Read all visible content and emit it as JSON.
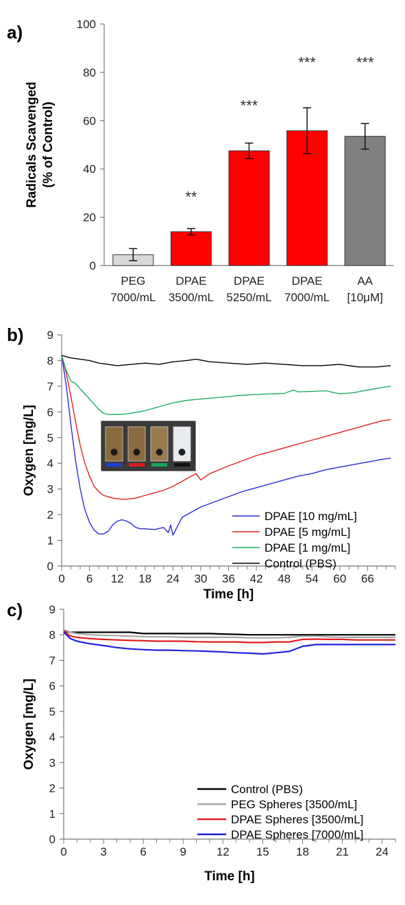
{
  "chart_data": [
    {
      "panel": "a)",
      "type": "bar",
      "ylabel": [
        "Radicals Scavenged",
        "(% of Control)"
      ],
      "ylim": [
        0,
        100
      ],
      "yticks": [
        0,
        20,
        40,
        60,
        80,
        100
      ],
      "categories": [
        [
          "PEG",
          "7000/mL"
        ],
        [
          "DPAE",
          "3500/mL"
        ],
        [
          "DPAE",
          "5250/mL"
        ],
        [
          "DPAE",
          "7000/mL"
        ],
        [
          "AA",
          "[10μM]"
        ]
      ],
      "values": [
        4.5,
        14,
        47.5,
        55.8,
        53.5
      ],
      "errors": [
        2.5,
        1.3,
        3.2,
        9.5,
        5.3
      ],
      "significance": [
        "",
        "**",
        "***",
        "***",
        "***"
      ],
      "colors": [
        "#d9d9d9",
        "#ff0000",
        "#ff0000",
        "#ff0000",
        "#808080"
      ]
    },
    {
      "panel": "b)",
      "type": "line",
      "xlabel": "Time [h]",
      "ylabel": "Oxygen [mg/L]",
      "xlim": [
        0,
        72
      ],
      "ylim": [
        0,
        9
      ],
      "xticks": [
        0,
        6,
        12,
        18,
        24,
        30,
        36,
        42,
        48,
        54,
        60,
        66
      ],
      "yticks": [
        0,
        1,
        2,
        3,
        4,
        5,
        6,
        7,
        8,
        9
      ],
      "legend_position": "bottom-right",
      "inset_image": {
        "swatches": [
          "#1f3fd6",
          "#e01b1b",
          "#1aa65a",
          "#111111"
        ]
      },
      "series": [
        {
          "name": "DPAE [10 mg/mL]",
          "color": "#2b2bd6",
          "x": [
            0,
            1,
            2,
            3,
            4,
            5,
            6,
            7,
            8,
            9,
            10,
            11,
            12,
            13,
            14,
            15,
            16,
            17,
            18,
            20,
            22,
            23,
            23.5,
            24,
            26,
            28,
            30,
            33,
            36,
            39,
            42,
            45,
            48,
            51,
            54,
            57,
            60,
            63,
            66,
            69,
            71
          ],
          "y": [
            8.2,
            7.0,
            5.5,
            4.1,
            3.0,
            2.2,
            1.7,
            1.4,
            1.25,
            1.25,
            1.35,
            1.6,
            1.75,
            1.8,
            1.75,
            1.65,
            1.5,
            1.45,
            1.45,
            1.42,
            1.5,
            1.3,
            1.6,
            1.2,
            1.9,
            2.1,
            2.3,
            2.5,
            2.7,
            2.9,
            3.05,
            3.2,
            3.35,
            3.5,
            3.6,
            3.75,
            3.85,
            3.95,
            4.05,
            4.15,
            4.2
          ]
        },
        {
          "name": "DPAE [5 mg/mL]",
          "color": "#e02020",
          "x": [
            0,
            1,
            2,
            3,
            4,
            5,
            6,
            7,
            8,
            9,
            10,
            11,
            12,
            13,
            14,
            15,
            16,
            18,
            20,
            22,
            24,
            26,
            28,
            29,
            30,
            32,
            34,
            36,
            39,
            42,
            45,
            48,
            51,
            54,
            57,
            60,
            63,
            66,
            69,
            71
          ],
          "y": [
            8.2,
            7.5,
            6.6,
            5.6,
            4.7,
            4.0,
            3.5,
            3.1,
            2.9,
            2.75,
            2.7,
            2.65,
            2.62,
            2.6,
            2.6,
            2.62,
            2.65,
            2.75,
            2.85,
            2.95,
            3.1,
            3.3,
            3.5,
            3.6,
            3.35,
            3.6,
            3.75,
            3.9,
            4.1,
            4.3,
            4.45,
            4.6,
            4.75,
            4.9,
            5.05,
            5.2,
            5.35,
            5.5,
            5.65,
            5.7
          ]
        },
        {
          "name": "DPAE [1 mg/mL]",
          "color": "#1fae6a",
          "x": [
            0,
            1,
            2,
            3,
            4,
            5,
            6,
            7,
            8,
            9,
            10,
            12,
            14,
            16,
            18,
            20,
            22,
            24,
            27,
            30,
            33,
            36,
            39,
            42,
            45,
            48,
            50,
            51,
            54,
            57,
            60,
            63,
            66,
            69,
            71
          ],
          "y": [
            8.2,
            7.6,
            7.2,
            7.1,
            6.9,
            6.7,
            6.5,
            6.3,
            6.1,
            5.95,
            5.9,
            5.9,
            5.92,
            5.98,
            6.05,
            6.15,
            6.25,
            6.35,
            6.45,
            6.5,
            6.55,
            6.6,
            6.65,
            6.68,
            6.7,
            6.72,
            6.85,
            6.78,
            6.8,
            6.82,
            6.7,
            6.75,
            6.85,
            6.95,
            7.0
          ]
        },
        {
          "name": "Control (PBS)",
          "color": "#000000",
          "x": [
            0,
            2,
            4,
            6,
            8,
            10,
            12,
            15,
            18,
            21,
            24,
            27,
            29,
            32,
            36,
            40,
            44,
            48,
            52,
            56,
            60,
            64,
            68,
            71
          ],
          "y": [
            8.2,
            8.1,
            8.05,
            8.0,
            7.9,
            7.85,
            7.8,
            7.85,
            7.9,
            7.85,
            7.95,
            8.0,
            8.05,
            7.95,
            7.9,
            7.85,
            7.9,
            7.85,
            7.8,
            7.8,
            7.85,
            7.75,
            7.75,
            7.8
          ]
        }
      ]
    },
    {
      "panel": "c)",
      "type": "line",
      "xlabel": "Time [h]",
      "ylabel": "Oxygen [mg/L]",
      "xlim": [
        0,
        25
      ],
      "ylim": [
        0,
        9
      ],
      "xticks": [
        0,
        3,
        6,
        9,
        12,
        15,
        18,
        21,
        24
      ],
      "yticks": [
        0,
        1,
        2,
        3,
        4,
        5,
        6,
        7,
        8,
        9
      ],
      "legend_position": "bottom-right",
      "series": [
        {
          "name": "Control (PBS)",
          "color": "#000000",
          "x": [
            0,
            0.5,
            1,
            2,
            3,
            4,
            5,
            6,
            7,
            8,
            9,
            10,
            11,
            12,
            13,
            14,
            15,
            16,
            17,
            18,
            19,
            20,
            21,
            22,
            23,
            24,
            25
          ],
          "y": [
            8.15,
            8.1,
            8.1,
            8.1,
            8.1,
            8.1,
            8.1,
            8.05,
            8.05,
            8.05,
            8.05,
            8.05,
            8.05,
            8.03,
            8.02,
            8.0,
            8.0,
            8.0,
            8.0,
            8.0,
            8.0,
            8.0,
            8.0,
            8.0,
            8.0,
            8.0,
            8.0
          ]
        },
        {
          "name": "PEG Spheres [3500/mL]",
          "color": "#a6a6a6",
          "x": [
            0,
            0.5,
            1,
            2,
            3,
            4,
            5,
            6,
            7,
            8,
            9,
            10,
            11,
            12,
            13,
            14,
            15,
            16,
            17,
            18,
            19,
            20,
            21,
            22,
            23,
            24,
            25
          ],
          "y": [
            8.2,
            8.1,
            8.05,
            8.0,
            7.98,
            7.97,
            7.95,
            7.93,
            7.92,
            7.92,
            7.9,
            7.9,
            7.9,
            7.9,
            7.9,
            7.88,
            7.88,
            7.88,
            7.9,
            7.95,
            7.95,
            7.92,
            7.9,
            7.9,
            7.9,
            7.9,
            7.9
          ]
        },
        {
          "name": "DPAE Spheres [3500/mL]",
          "color": "#e01b1b",
          "x": [
            0,
            0.5,
            1,
            2,
            3,
            4,
            5,
            6,
            7,
            8,
            9,
            10,
            11,
            12,
            13,
            14,
            15,
            16,
            17,
            18,
            19,
            20,
            21,
            22,
            23,
            24,
            25
          ],
          "y": [
            8.15,
            7.95,
            7.9,
            7.85,
            7.82,
            7.8,
            7.78,
            7.77,
            7.75,
            7.75,
            7.75,
            7.73,
            7.72,
            7.72,
            7.72,
            7.7,
            7.7,
            7.72,
            7.72,
            7.82,
            7.83,
            7.82,
            7.82,
            7.8,
            7.8,
            7.8,
            7.8
          ]
        },
        {
          "name": "DPAE Spheres [7000/mL]",
          "color": "#1f1fe0",
          "x": [
            0,
            0.5,
            1,
            2,
            3,
            4,
            5,
            6,
            7,
            8,
            9,
            10,
            11,
            12,
            13,
            14,
            15,
            16,
            17,
            18,
            19,
            20,
            21,
            22,
            23,
            24,
            25
          ],
          "y": [
            8.1,
            7.85,
            7.75,
            7.65,
            7.58,
            7.5,
            7.45,
            7.42,
            7.4,
            7.4,
            7.38,
            7.37,
            7.35,
            7.33,
            7.3,
            7.28,
            7.25,
            7.3,
            7.35,
            7.55,
            7.62,
            7.62,
            7.62,
            7.62,
            7.62,
            7.62,
            7.62
          ]
        }
      ]
    }
  ]
}
